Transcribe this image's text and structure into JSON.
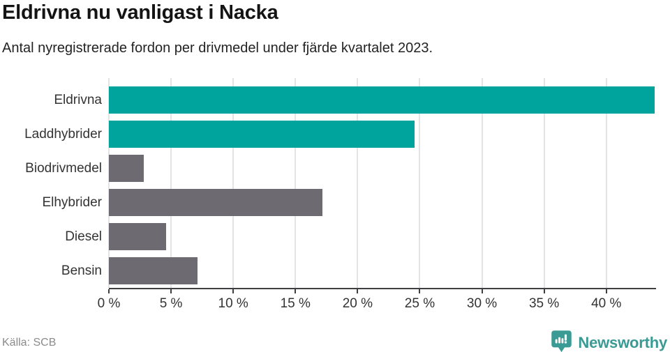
{
  "header": {
    "title": "Eldrivna nu vanligast i Nacka",
    "subtitle": "Antal nyregistrerade fordon per drivmedel under fjärde kvartalet 2023."
  },
  "chart_data": {
    "type": "bar",
    "orientation": "horizontal",
    "title": "Eldrivna nu vanligast i Nacka",
    "subtitle": "Antal nyregistrerade fordon per drivmedel under fjärde kvartalet 2023.",
    "categories": [
      "Eldrivna",
      "Laddhybrider",
      "Biodrivmedel",
      "Elhybrider",
      "Diesel",
      "Bensin"
    ],
    "values": [
      43.9,
      24.6,
      2.8,
      17.2,
      4.6,
      7.1
    ],
    "unit": "%",
    "xlim": [
      0,
      44
    ],
    "xticks": [
      0,
      5,
      10,
      15,
      20,
      25,
      30,
      35,
      40
    ],
    "xtick_suffix": " %",
    "grid": true,
    "legend": "none",
    "bar_colors": [
      "#00a49c",
      "#00a49c",
      "#6d6b71",
      "#6d6b71",
      "#6d6b71",
      "#6d6b71"
    ],
    "colors": {
      "highlight": "#00a49c",
      "default": "#6d6b71",
      "gridline": "#e4e4e6",
      "axis": "#3f3f41"
    }
  },
  "footer": {
    "source": "Källa: SCB",
    "brand": "Newsworthy",
    "brand_color": "#3a9a94"
  }
}
